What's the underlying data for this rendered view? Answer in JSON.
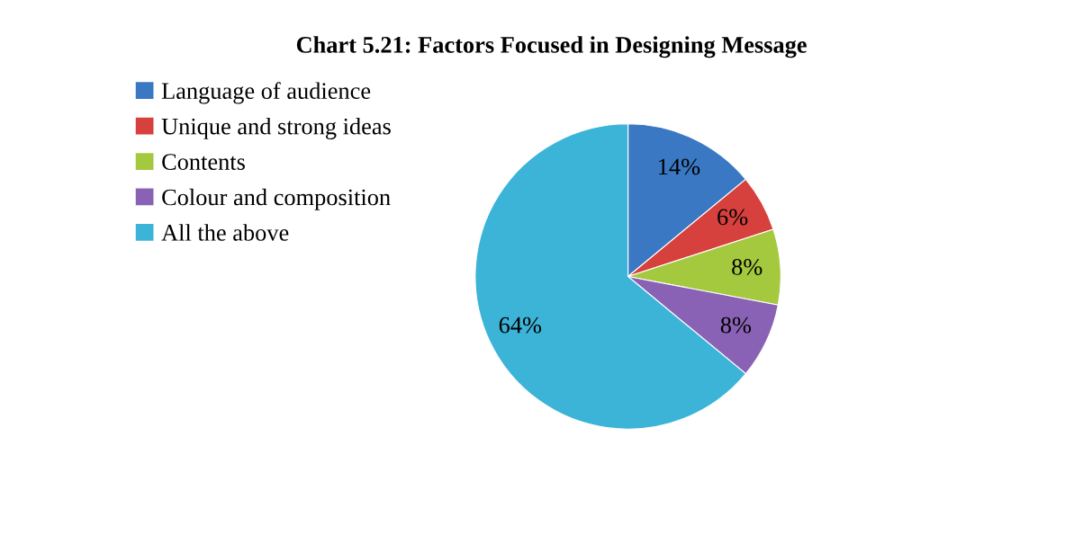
{
  "chart_data": {
    "type": "pie",
    "title": "Chart 5.21: Factors Focused in Designing Message",
    "categories": [
      "Language of audience",
      "Unique and strong ideas",
      "Contents",
      "Colour and composition",
      "All the above"
    ],
    "values": [
      14,
      6,
      8,
      8,
      64
    ],
    "value_labels": [
      "14%",
      "6%",
      "8%",
      "8%",
      "64%"
    ],
    "colors": [
      "#3a78c3",
      "#d6403d",
      "#a4c83e",
      "#8a62b5",
      "#3cb4d8"
    ],
    "legend": "top left"
  }
}
